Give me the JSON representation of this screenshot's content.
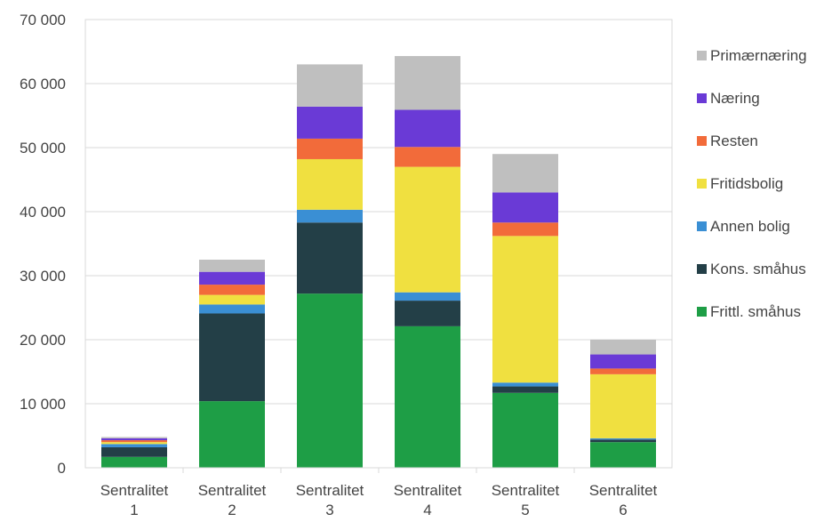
{
  "chart_data": {
    "type": "bar",
    "stacked": true,
    "categories": [
      [
        "Sentralitet",
        "1"
      ],
      [
        "Sentralitet",
        "2"
      ],
      [
        "Sentralitet",
        "3"
      ],
      [
        "Sentralitet",
        "4"
      ],
      [
        "Sentralitet",
        "5"
      ],
      [
        "Sentralitet",
        "6"
      ]
    ],
    "series": [
      {
        "name": "Frittl. småhus",
        "color": "#1e9e46",
        "values": [
          1700,
          10400,
          27200,
          22100,
          11700,
          4000
        ]
      },
      {
        "name": "Kons. småhus",
        "color": "#233f47",
        "values": [
          1500,
          13700,
          11100,
          4000,
          1000,
          400
        ]
      },
      {
        "name": "Annen bolig",
        "color": "#3a8fd4",
        "values": [
          500,
          1400,
          2000,
          1300,
          600,
          200
        ]
      },
      {
        "name": "Fritidsbolig",
        "color": "#f0e040",
        "values": [
          300,
          1500,
          7900,
          19600,
          22900,
          10000
        ]
      },
      {
        "name": "Resten",
        "color": "#f26b3a",
        "values": [
          300,
          1600,
          3200,
          3100,
          2100,
          900
        ]
      },
      {
        "name": "Næring",
        "color": "#6a3ad6",
        "values": [
          300,
          2000,
          5000,
          5800,
          4700,
          2200
        ]
      },
      {
        "name": "Primærnæring",
        "color": "#bfbfbf",
        "values": [
          200,
          1900,
          6600,
          8400,
          6000,
          2300
        ]
      }
    ],
    "yticks": [
      "0",
      "10 000",
      "20 000",
      "30 000",
      "40 000",
      "50 000",
      "60 000",
      "70 000"
    ],
    "ylim": [
      0,
      70000
    ],
    "grid": true,
    "legend_position": "right",
    "legend_order": [
      "Primærnæring",
      "Næring",
      "Resten",
      "Fritidsbolig",
      "Annen bolig",
      "Kons. småhus",
      "Frittl. småhus"
    ]
  }
}
